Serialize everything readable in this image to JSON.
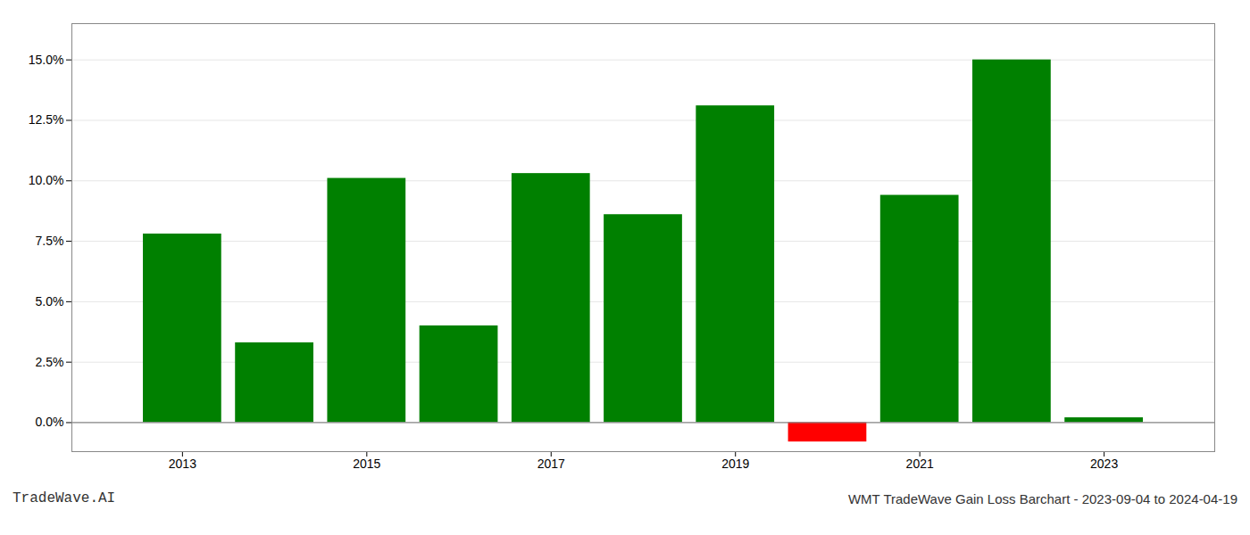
{
  "chart_data": {
    "type": "bar",
    "x": [
      2013,
      2014,
      2015,
      2016,
      2017,
      2018,
      2019,
      2020,
      2021,
      2022,
      2023
    ],
    "values": [
      0.078,
      0.033,
      0.101,
      0.04,
      0.103,
      0.086,
      0.131,
      -0.008,
      0.094,
      0.15,
      0.002
    ],
    "colors": [
      "#008000",
      "#008000",
      "#008000",
      "#008000",
      "#008000",
      "#008000",
      "#008000",
      "#ff0000",
      "#008000",
      "#008000",
      "#008000"
    ],
    "xlim": [
      2011.8,
      2024.2
    ],
    "xticks": [
      2013,
      2015,
      2017,
      2019,
      2021,
      2023
    ],
    "ylim": [
      -0.012,
      0.165
    ],
    "yticks": [
      {
        "value": 0.0,
        "label": "0.0%"
      },
      {
        "value": 0.025,
        "label": "2.5%"
      },
      {
        "value": 0.05,
        "label": "5.0%"
      },
      {
        "value": 0.075,
        "label": "7.5%"
      },
      {
        "value": 0.1,
        "label": "10.0%"
      },
      {
        "value": 0.125,
        "label": "12.5%"
      },
      {
        "value": 0.15,
        "label": "15.0%"
      }
    ],
    "grid": true,
    "annotations": [
      "TradeWave.AI",
      "WMT TradeWave Gain Loss Barchart - 2023-09-04 to 2024-04-19"
    ]
  }
}
